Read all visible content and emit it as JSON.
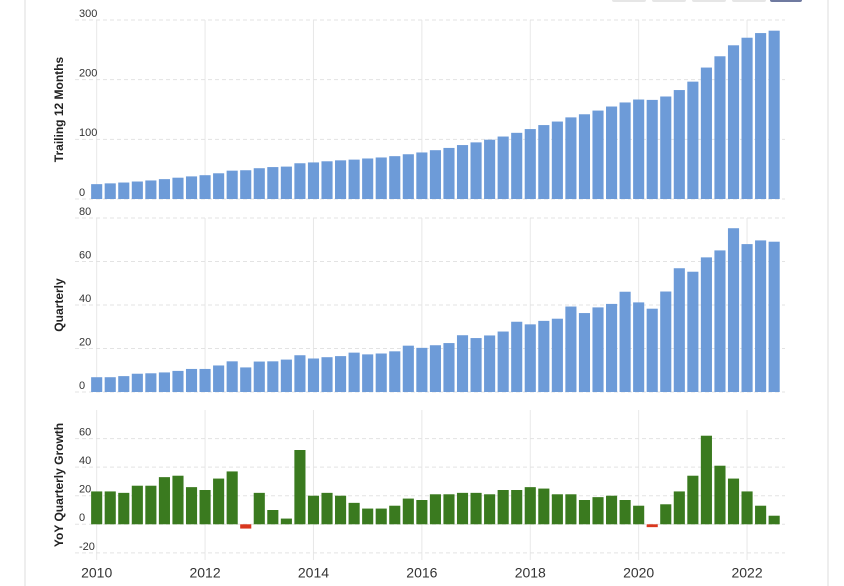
{
  "chart_data": [
    {
      "type": "bar",
      "y_label": "Trailing 12 Months",
      "color": "#6d9bd8",
      "negative_color": "#d9371e",
      "x": [
        2010,
        2010.25,
        2010.5,
        2010.75,
        2011,
        2011.25,
        2011.5,
        2011.75,
        2012,
        2012.25,
        2012.5,
        2012.75,
        2013,
        2013.25,
        2013.5,
        2013.75,
        2014,
        2014.25,
        2014.5,
        2014.75,
        2015,
        2015.25,
        2015.5,
        2015.75,
        2016,
        2016.25,
        2016.5,
        2016.75,
        2017,
        2017.25,
        2017.5,
        2017.75,
        2018,
        2018.25,
        2018.5,
        2018.75,
        2019,
        2019.25,
        2019.5,
        2019.75,
        2020,
        2020.25,
        2020.5,
        2020.75,
        2021,
        2021.25,
        2021.5,
        2021.75,
        2022,
        2022.25,
        2022.5
      ],
      "values": [
        24.9,
        26.2,
        27.6,
        29.3,
        31.1,
        33.3,
        35.7,
        37.9,
        39.9,
        43.1,
        47.5,
        48.2,
        51.6,
        53.5,
        54.3,
        59.9,
        61.3,
        63.2,
        64.8,
        66.0,
        67.9,
        69.6,
        71.8,
        75.0,
        78.0,
        81.8,
        85.6,
        90.4,
        94.9,
        99.4,
        104.7,
        110.9,
        117.2,
        123.9,
        129.8,
        136.8,
        142.0,
        148.2,
        155.0,
        161.8,
        166.7,
        166.1,
        171.8,
        182.6,
        196.7,
        220.3,
        239.2,
        257.6,
        270.3,
        278.1,
        282.1
      ],
      "xlim": [
        2009.6,
        2022.7
      ],
      "xticks": [
        2010,
        2012,
        2014,
        2016,
        2018,
        2020,
        2022
      ],
      "ylim": [
        0,
        300
      ],
      "yticks": [
        0,
        100,
        200,
        300
      ],
      "grid": true
    },
    {
      "type": "bar",
      "y_label": "Quarterly",
      "color": "#6d9bd8",
      "negative_color": "#d9371e",
      "x": [
        2010,
        2010.25,
        2010.5,
        2010.75,
        2011,
        2011.25,
        2011.5,
        2011.75,
        2012,
        2012.25,
        2012.5,
        2012.75,
        2013,
        2013.25,
        2013.5,
        2013.75,
        2014,
        2014.25,
        2014.5,
        2014.75,
        2015,
        2015.25,
        2015.5,
        2015.75,
        2016,
        2016.25,
        2016.5,
        2016.75,
        2017,
        2017.25,
        2017.5,
        2017.75,
        2018,
        2018.25,
        2018.5,
        2018.75,
        2019,
        2019.25,
        2019.5,
        2019.75,
        2020,
        2020.25,
        2020.5,
        2020.75,
        2021,
        2021.25,
        2021.5,
        2021.75,
        2022,
        2022.25,
        2022.5
      ],
      "values": [
        6.8,
        6.8,
        7.3,
        8.4,
        8.6,
        9.0,
        9.7,
        10.6,
        10.6,
        12.2,
        14.1,
        11.3,
        14.0,
        14.1,
        14.9,
        16.9,
        15.4,
        16.0,
        16.5,
        18.1,
        17.3,
        17.7,
        18.7,
        21.3,
        20.3,
        21.5,
        22.5,
        26.1,
        24.8,
        26.0,
        27.8,
        32.3,
        31.1,
        32.7,
        33.7,
        39.3,
        36.3,
        38.9,
        40.5,
        46.1,
        41.2,
        38.3,
        46.2,
        56.9,
        55.3,
        61.9,
        65.1,
        75.3,
        68.0,
        69.7,
        69.1
      ],
      "xlim": [
        2009.6,
        2022.7
      ],
      "xticks": [
        2010,
        2012,
        2014,
        2016,
        2018,
        2020,
        2022
      ],
      "ylim": [
        0,
        80
      ],
      "yticks": [
        0,
        20,
        40,
        60,
        80
      ],
      "grid": true
    },
    {
      "type": "bar",
      "y_label": "YoY Quarterly Growth",
      "color": "#3a7a1f",
      "negative_color": "#d9371e",
      "x": [
        2010,
        2010.25,
        2010.5,
        2010.75,
        2011,
        2011.25,
        2011.5,
        2011.75,
        2012,
        2012.25,
        2012.5,
        2012.75,
        2013,
        2013.25,
        2013.5,
        2013.75,
        2014,
        2014.25,
        2014.5,
        2014.75,
        2015,
        2015.25,
        2015.5,
        2015.75,
        2016,
        2016.25,
        2016.5,
        2016.75,
        2017,
        2017.25,
        2017.5,
        2017.75,
        2018,
        2018.25,
        2018.5,
        2018.75,
        2019,
        2019.25,
        2019.5,
        2019.75,
        2020,
        2020.25,
        2020.5,
        2020.75,
        2021,
        2021.25,
        2021.5,
        2021.75,
        2022,
        2022.25,
        2022.5
      ],
      "values": [
        23,
        23,
        22,
        27,
        27,
        33,
        34,
        26,
        24,
        32,
        37,
        -3,
        22,
        10,
        4,
        52,
        20,
        22,
        20,
        15,
        11,
        11,
        13,
        18,
        17,
        21,
        21,
        22,
        22,
        21,
        24,
        24,
        26,
        25,
        21,
        21,
        17,
        19,
        20,
        17,
        13,
        -2,
        14,
        23,
        34,
        62,
        41,
        32,
        23,
        13,
        6
      ],
      "xlim": [
        2009.6,
        2022.7
      ],
      "xticks": [
        2010,
        2012,
        2014,
        2016,
        2018,
        2020,
        2022
      ],
      "ylim": [
        -25,
        80
      ],
      "yticks": [
        -20,
        0,
        20,
        40,
        60
      ],
      "grid": true,
      "x_tick_labels": true
    }
  ]
}
